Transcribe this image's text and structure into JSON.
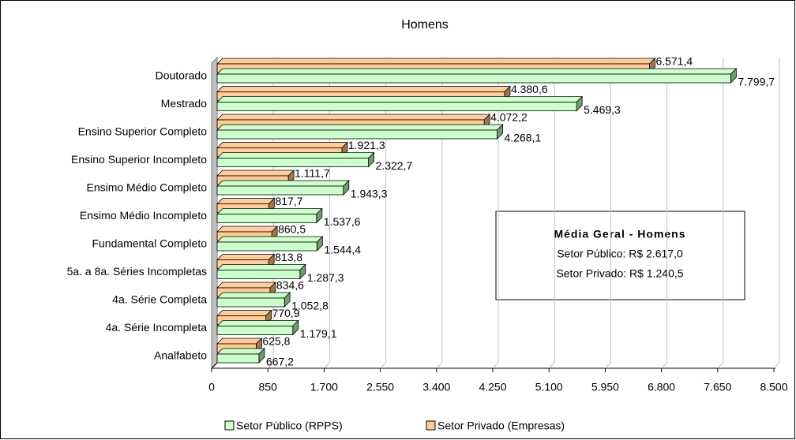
{
  "chart_data": {
    "type": "bar3d_horizontal",
    "title": "Homens",
    "categories": [
      "Doutorado",
      "Mestrado",
      "Ensino Superior Completo",
      "Ensino Superior Incompleto",
      "Ensimo Médio Completo",
      "Ensimo Médio Incompleto",
      "Fundamental Completo",
      "5a. a 8a. Séries Incompletas",
      "4a. Série Completa",
      "4a. Série Incompleta",
      "Analfabeto"
    ],
    "series": [
      {
        "name": "Setor Público (RPPS)",
        "color": "#ccffcc",
        "side_color": "#6f9f6f",
        "values": [
          7799.7,
          5469.3,
          4268.1,
          2322.7,
          1943.3,
          1537.6,
          1544.4,
          1287.3,
          1052.8,
          1179.1,
          667.2
        ],
        "value_labels": [
          "7.799,7",
          "5.469,3",
          "4.268,1",
          "2.322,7",
          "1.943,3",
          "1.537,6",
          "1.544,4",
          "1.287,3",
          "1.052,8",
          "1.179,1",
          "667,2"
        ]
      },
      {
        "name": "Setor Privado (Empresas)",
        "color": "#ffcc99",
        "side_color": "#a0764a",
        "values": [
          6571.4,
          4380.6,
          4072.2,
          1921.3,
          1111.7,
          817.7,
          860.5,
          813.8,
          834.6,
          770.9,
          625.8
        ],
        "value_labels": [
          "6.571,4",
          "4.380,6",
          "4.072,2",
          "1.921,3",
          "1.111,7",
          "817,7",
          "860,5",
          "813,8",
          "834,6",
          "770,9",
          "625,8"
        ]
      }
    ],
    "xlim": [
      0,
      8500
    ],
    "xticks": [
      0,
      850,
      {
        "value": 1700,
        "label": "1.700"
      },
      {
        "value": 2550,
        "label": "2.550"
      },
      {
        "value": 3400,
        "label": "3.400"
      },
      {
        "value": 4250,
        "label": "4.250"
      },
      {
        "value": 5100,
        "label": "5.100"
      },
      {
        "value": 5950,
        "label": "5.950"
      },
      {
        "value": 6800,
        "label": "6.800"
      },
      {
        "value": 7650,
        "label": "7.650"
      },
      {
        "value": 8500,
        "label": "8.500"
      }
    ],
    "grid": true,
    "legend": "bottom",
    "annotation": {
      "title": "Média Geral - Homens",
      "lines": [
        "Setor Público: R$ 2.617,0",
        "Setor Privado: R$ 1.240,5"
      ]
    }
  }
}
